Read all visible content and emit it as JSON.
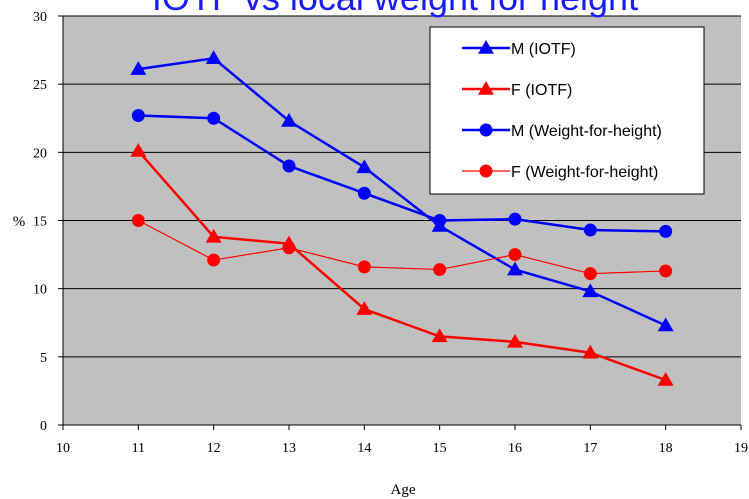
{
  "chart_data": {
    "type": "line",
    "title": "IOTF  vs local weight for height",
    "xlabel": "Age",
    "ylabel": "%",
    "xlim": [
      10,
      19
    ],
    "ylim": [
      0,
      30
    ],
    "xticks": [
      10,
      11,
      12,
      13,
      14,
      15,
      16,
      17,
      18,
      19
    ],
    "yticks": [
      0,
      5,
      10,
      15,
      20,
      25,
      30
    ],
    "grid": "horizontal",
    "legend_position": "top-right",
    "plot_background": "#c0c0c0",
    "series": [
      {
        "name": "M (IOTF)",
        "color": "#0000ff",
        "marker": "triangle",
        "line_width": 2.5,
        "x": [
          11,
          12,
          13,
          14,
          15,
          16,
          17,
          18
        ],
        "y": [
          26.1,
          26.9,
          22.3,
          18.9,
          14.6,
          11.4,
          9.8,
          7.3
        ]
      },
      {
        "name": "F (IOTF)",
        "color": "#ff0000",
        "marker": "triangle",
        "line_width": 2.5,
        "x": [
          11,
          12,
          13,
          14,
          15,
          16,
          17,
          18
        ],
        "y": [
          20.1,
          13.8,
          13.3,
          8.5,
          6.5,
          6.1,
          5.3,
          3.3
        ]
      },
      {
        "name": "M (Weight-for-height)",
        "color": "#0000ff",
        "marker": "circle",
        "line_width": 2.5,
        "x": [
          11,
          12,
          13,
          14,
          15,
          16,
          17,
          18
        ],
        "y": [
          22.7,
          22.5,
          19.0,
          17.0,
          15.0,
          15.1,
          14.3,
          14.2
        ]
      },
      {
        "name": "F (Weight-for-height)",
        "color": "#ff0000",
        "marker": "circle",
        "line_width": 1.2,
        "x": [
          11,
          12,
          13,
          14,
          15,
          16,
          17,
          18
        ],
        "y": [
          15.0,
          12.1,
          13.0,
          11.6,
          11.4,
          12.5,
          11.1,
          11.3
        ]
      }
    ]
  }
}
